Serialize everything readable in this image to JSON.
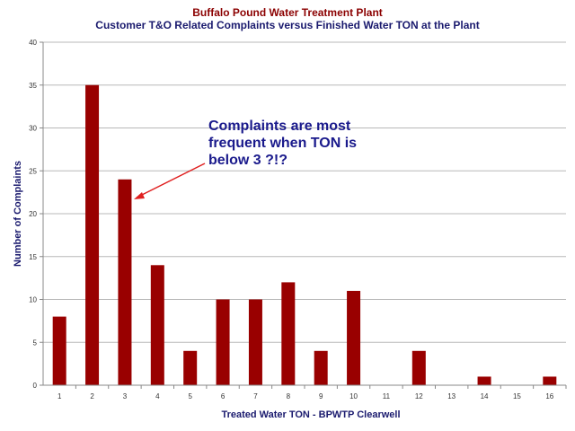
{
  "chart_data": {
    "type": "bar",
    "title": "Buffalo Pound Water Treatment Plant",
    "subtitle": "Customer T&O Related Complaints versus Finished Water TON  at the Plant",
    "xlabel": "Treated Water TON - BPWTP Clearwell",
    "ylabel": "Number of Complaints",
    "categories": [
      "1",
      "2",
      "3",
      "4",
      "5",
      "6",
      "7",
      "8",
      "9",
      "10",
      "11",
      "12",
      "13",
      "14",
      "15",
      "16"
    ],
    "values": [
      8,
      35,
      24,
      14,
      4,
      10,
      10,
      12,
      4,
      11,
      0,
      4,
      0,
      1,
      0,
      1
    ],
    "ylim": [
      0,
      40
    ],
    "yticks": [
      0,
      5,
      10,
      15,
      20,
      25,
      30,
      35,
      40
    ],
    "grid": true,
    "legend": "none",
    "bar_color": "#990000",
    "annotation": {
      "lines": [
        "Complaints are most",
        "frequent when TON is",
        "below 3 ?!?"
      ],
      "target_category": "3",
      "arrow_color": "#e02020",
      "text_color": "#1a1a8c"
    }
  }
}
